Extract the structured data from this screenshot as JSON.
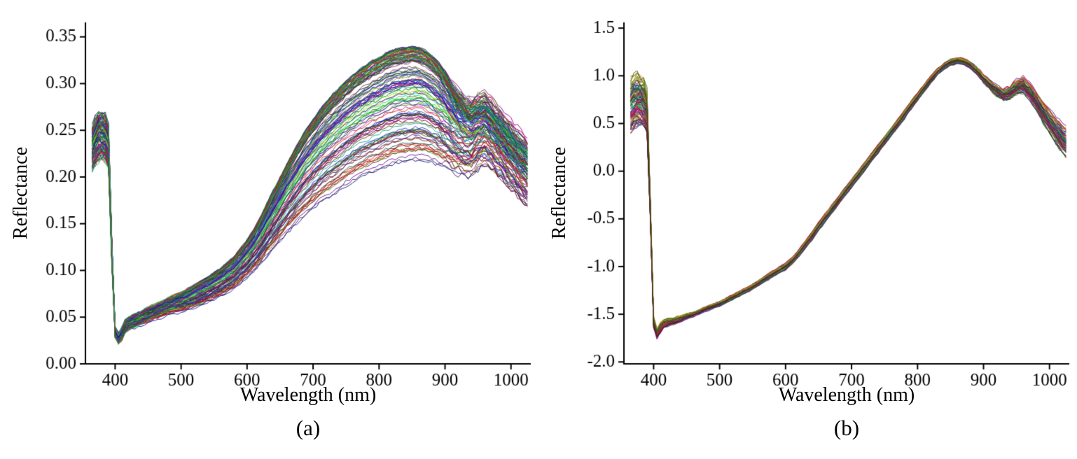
{
  "figure_caption_a": "(a)",
  "figure_caption_b": "(b)",
  "chart_data": [
    {
      "type": "line",
      "title": "",
      "caption": "(a)",
      "xlabel": "Wavelength (nm)",
      "ylabel": "Reflectance",
      "xlim": [
        355,
        1030
      ],
      "ylim": [
        0,
        0.3655
      ],
      "xticks": [
        400,
        500,
        600,
        700,
        800,
        900,
        1000
      ],
      "xtick_labels": [
        "400",
        "500",
        "600",
        "700",
        "800",
        "900",
        "1000"
      ],
      "yticks": [
        0.0,
        0.05,
        0.1,
        0.15,
        0.2,
        0.25,
        0.3,
        0.35
      ],
      "ytick_labels": [
        "0.00",
        "0.05",
        "0.10",
        "0.15",
        "0.20",
        "0.25",
        "0.30",
        "0.35"
      ],
      "grid": false,
      "legend": "none",
      "n_curves": 130,
      "seed": 11,
      "amp_dist": "top",
      "x": [
        365,
        370,
        375,
        380,
        385,
        390,
        395,
        400,
        405,
        410,
        415,
        420,
        430,
        440,
        450,
        460,
        480,
        500,
        520,
        540,
        560,
        580,
        600,
        610,
        620,
        630,
        640,
        650,
        660,
        670,
        680,
        690,
        700,
        710,
        720,
        730,
        740,
        750,
        760,
        770,
        780,
        790,
        800,
        810,
        820,
        830,
        840,
        850,
        860,
        870,
        880,
        890,
        900,
        910,
        920,
        930,
        940,
        950,
        960,
        970,
        980,
        990,
        1000,
        1010,
        1020,
        1025
      ],
      "base": [
        0.23,
        0.238,
        0.243,
        0.244,
        0.242,
        0.232,
        0.12,
        0.034,
        0.027,
        0.032,
        0.04,
        0.043,
        0.046,
        0.049,
        0.052,
        0.055,
        0.061,
        0.066,
        0.072,
        0.079,
        0.087,
        0.097,
        0.112,
        0.121,
        0.131,
        0.143,
        0.154,
        0.165,
        0.176,
        0.186,
        0.196,
        0.205,
        0.213,
        0.221,
        0.228,
        0.234,
        0.24,
        0.246,
        0.251,
        0.256,
        0.26,
        0.264,
        0.267,
        0.271,
        0.274,
        0.276,
        0.277,
        0.278,
        0.278,
        0.276,
        0.272,
        0.267,
        0.261,
        0.254,
        0.247,
        0.242,
        0.241,
        0.247,
        0.251,
        0.245,
        0.237,
        0.229,
        0.221,
        0.213,
        0.206,
        0.202
      ],
      "spread": [
        0.022,
        0.024,
        0.025,
        0.025,
        0.024,
        0.022,
        0.012,
        0.005,
        0.005,
        0.006,
        0.007,
        0.007,
        0.008,
        0.008,
        0.009,
        0.009,
        0.01,
        0.011,
        0.012,
        0.013,
        0.015,
        0.017,
        0.02,
        0.022,
        0.025,
        0.028,
        0.031,
        0.034,
        0.037,
        0.04,
        0.043,
        0.046,
        0.048,
        0.05,
        0.052,
        0.054,
        0.055,
        0.056,
        0.057,
        0.058,
        0.059,
        0.06,
        0.06,
        0.061,
        0.061,
        0.061,
        0.061,
        0.061,
        0.06,
        0.059,
        0.057,
        0.055,
        0.053,
        0.051,
        0.049,
        0.047,
        0.046,
        0.046,
        0.046,
        0.045,
        0.044,
        0.044,
        0.043,
        0.043,
        0.043,
        0.043
      ],
      "noise": [
        0.005,
        0.005,
        0.005,
        0.005,
        0.005,
        0.005,
        0.004,
        0.0025,
        0.0025,
        0.0025,
        0.0015,
        0.0015,
        0.0015,
        0.0015,
        0.0015,
        0.0015,
        0.0015,
        0.0015,
        0.0015,
        0.0015,
        0.0015,
        0.0015,
        0.0018,
        0.0018,
        0.0018,
        0.0018,
        0.0018,
        0.0018,
        0.0018,
        0.0018,
        0.0018,
        0.0018,
        0.0018,
        0.0018,
        0.0018,
        0.0018,
        0.0018,
        0.0018,
        0.0018,
        0.0018,
        0.0018,
        0.0018,
        0.0018,
        0.0018,
        0.0018,
        0.0018,
        0.0018,
        0.0018,
        0.0018,
        0.0018,
        0.0018,
        0.003,
        0.003,
        0.0035,
        0.0035,
        0.0035,
        0.0035,
        0.0035,
        0.0035,
        0.0035,
        0.0035,
        0.0035,
        0.0035,
        0.0035,
        0.0035,
        0.0035
      ]
    },
    {
      "type": "line",
      "title": "",
      "caption": "(b)",
      "xlabel": "Wavelength (nm)",
      "ylabel": "Reflectance",
      "xlim": [
        355,
        1030
      ],
      "ylim": [
        -2.02,
        1.56
      ],
      "xticks": [
        400,
        500,
        600,
        700,
        800,
        900,
        1000
      ],
      "xtick_labels": [
        "400",
        "500",
        "600",
        "700",
        "800",
        "900",
        "1000"
      ],
      "yticks": [
        -2.0,
        -1.5,
        -1.0,
        -0.5,
        0.0,
        0.5,
        1.0,
        1.5
      ],
      "ytick_labels": [
        "-2.0",
        "-1.5",
        "-1.0",
        "-0.5",
        "0.0",
        "0.5",
        "1.0",
        "1.5"
      ],
      "grid": false,
      "legend": "none",
      "n_curves": 110,
      "seed": 23,
      "amp_dist": "center",
      "x": [
        365,
        370,
        375,
        380,
        385,
        390,
        395,
        400,
        405,
        410,
        415,
        420,
        430,
        440,
        450,
        460,
        480,
        500,
        520,
        540,
        560,
        580,
        600,
        610,
        620,
        630,
        640,
        650,
        660,
        670,
        680,
        690,
        700,
        710,
        720,
        730,
        740,
        750,
        760,
        770,
        780,
        790,
        800,
        810,
        820,
        830,
        840,
        850,
        860,
        870,
        880,
        890,
        900,
        910,
        920,
        930,
        940,
        950,
        960,
        970,
        980,
        990,
        1000,
        1010,
        1020,
        1025
      ],
      "base": [
        0.7,
        0.74,
        0.76,
        0.75,
        0.72,
        0.62,
        -0.4,
        -1.58,
        -1.7,
        -1.64,
        -1.6,
        -1.59,
        -1.57,
        -1.55,
        -1.52,
        -1.5,
        -1.44,
        -1.39,
        -1.32,
        -1.25,
        -1.17,
        -1.08,
        -1.0,
        -0.94,
        -0.86,
        -0.77,
        -0.68,
        -0.58,
        -0.49,
        -0.4,
        -0.31,
        -0.22,
        -0.13,
        -0.04,
        0.05,
        0.14,
        0.23,
        0.32,
        0.41,
        0.5,
        0.59,
        0.69,
        0.78,
        0.87,
        0.96,
        1.04,
        1.1,
        1.14,
        1.16,
        1.15,
        1.11,
        1.05,
        0.97,
        0.9,
        0.84,
        0.8,
        0.82,
        0.88,
        0.9,
        0.83,
        0.73,
        0.62,
        0.52,
        0.42,
        0.33,
        0.3
      ],
      "spread": [
        0.28,
        0.28,
        0.27,
        0.26,
        0.25,
        0.22,
        0.1,
        0.05,
        0.05,
        0.05,
        0.04,
        0.04,
        0.04,
        0.035,
        0.035,
        0.03,
        0.03,
        0.03,
        0.03,
        0.03,
        0.03,
        0.035,
        0.04,
        0.04,
        0.045,
        0.045,
        0.05,
        0.05,
        0.05,
        0.05,
        0.05,
        0.05,
        0.05,
        0.05,
        0.05,
        0.05,
        0.05,
        0.05,
        0.05,
        0.05,
        0.05,
        0.05,
        0.048,
        0.045,
        0.042,
        0.04,
        0.038,
        0.036,
        0.035,
        0.036,
        0.04,
        0.045,
        0.05,
        0.06,
        0.07,
        0.08,
        0.09,
        0.1,
        0.11,
        0.12,
        0.14,
        0.16,
        0.18,
        0.2,
        0.22,
        0.23
      ],
      "noise": [
        0.05,
        0.05,
        0.05,
        0.05,
        0.05,
        0.05,
        0.03,
        0.02,
        0.02,
        0.02,
        0.012,
        0.01,
        0.008,
        0.008,
        0.008,
        0.008,
        0.008,
        0.008,
        0.008,
        0.008,
        0.008,
        0.008,
        0.008,
        0.008,
        0.008,
        0.008,
        0.008,
        0.008,
        0.008,
        0.008,
        0.008,
        0.008,
        0.008,
        0.008,
        0.008,
        0.008,
        0.008,
        0.008,
        0.008,
        0.008,
        0.008,
        0.008,
        0.008,
        0.008,
        0.008,
        0.008,
        0.008,
        0.008,
        0.008,
        0.008,
        0.008,
        0.015,
        0.015,
        0.02,
        0.02,
        0.02,
        0.02,
        0.02,
        0.02,
        0.02,
        0.02,
        0.02,
        0.02,
        0.02,
        0.02,
        0.02
      ]
    }
  ]
}
